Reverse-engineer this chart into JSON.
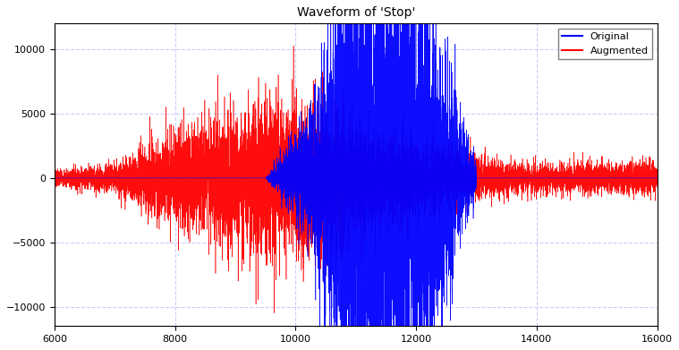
{
  "title": "Waveform of 'Stop'",
  "xlim": [
    6000,
    16000
  ],
  "ylim": [
    -11500,
    12000
  ],
  "yticks": [
    -10000,
    -5000,
    0,
    5000,
    10000
  ],
  "xticks": [
    6000,
    8000,
    10000,
    12000,
    14000,
    16000
  ],
  "original_color": "blue",
  "augmented_color": "red",
  "legend_original": "Original",
  "legend_augmented": "Augmented",
  "background_color": "#ffffff",
  "grid_color": "#ccccff",
  "title_fontsize": 10,
  "x_start": 6000,
  "x_end": 16000,
  "num_samples": 10000,
  "orig_peak": 11500,
  "aug_peak_low": 800,
  "aug_peak_mid": 3500,
  "aug_peak_high": 5000
}
